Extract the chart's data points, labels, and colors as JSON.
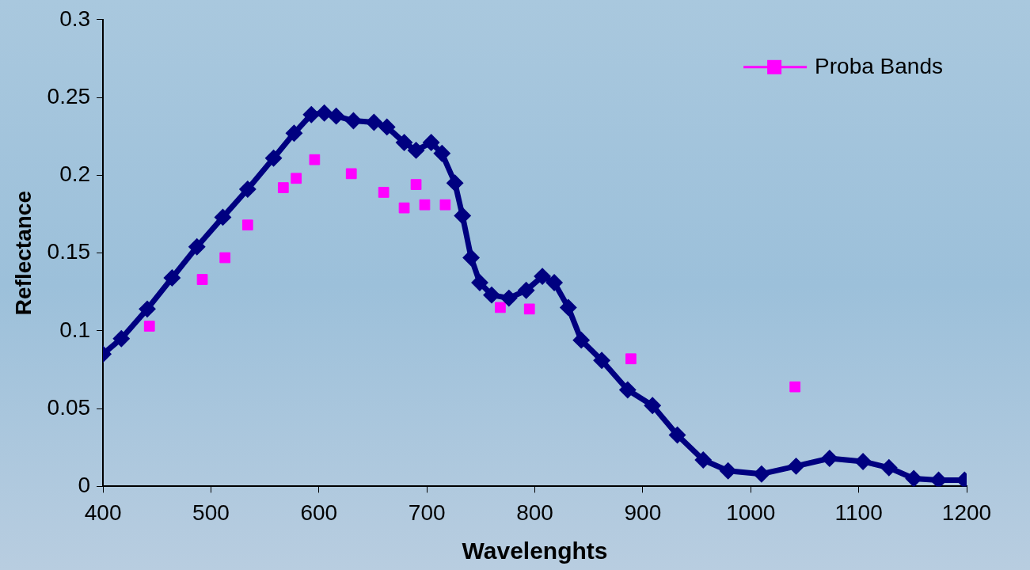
{
  "chart_data": {
    "type": "line",
    "xlabel": "Wavelenghts",
    "ylabel": "Reflectance",
    "xlim": [
      400,
      1200
    ],
    "xticks": [
      400,
      500,
      600,
      700,
      800,
      900,
      1000,
      1100,
      1200
    ],
    "ylim": [
      0,
      0.3
    ],
    "yticks": [
      0,
      0.05,
      0.1,
      0.15,
      0.2,
      0.25,
      0.3
    ],
    "grid": false,
    "legend": "top right",
    "series": [
      {
        "color": "#000080",
        "marker": "diamond",
        "x": [
          400,
          417,
          441,
          464,
          487,
          511,
          534,
          558,
          577,
          593,
          605,
          616,
          632,
          651,
          663,
          679,
          690,
          704,
          714,
          726,
          733,
          741,
          749,
          760,
          776,
          792,
          807,
          818,
          831,
          843,
          862,
          886,
          909,
          932,
          956,
          979,
          1010,
          1042,
          1073,
          1104,
          1128,
          1151,
          1174,
          1198
        ],
        "values": [
          0.085,
          0.095,
          0.114,
          0.134,
          0.154,
          0.173,
          0.191,
          0.211,
          0.227,
          0.239,
          0.24,
          0.238,
          0.235,
          0.234,
          0.231,
          0.221,
          0.216,
          0.221,
          0.214,
          0.195,
          0.174,
          0.147,
          0.131,
          0.123,
          0.121,
          0.126,
          0.135,
          0.131,
          0.115,
          0.094,
          0.081,
          0.062,
          0.052,
          0.033,
          0.017,
          0.01,
          0.008,
          0.013,
          0.018,
          0.016,
          0.012,
          0.005,
          0.004,
          0.004
        ]
      },
      {
        "type": "scatter",
        "name": "Proba Bands",
        "color": "#ff00ff",
        "marker": "square",
        "x": [
          443,
          492,
          513,
          534,
          567,
          579,
          596,
          630,
          660,
          679,
          690,
          698,
          717,
          768,
          795,
          889,
          1041
        ],
        "values": [
          0.103,
          0.133,
          0.147,
          0.168,
          0.192,
          0.198,
          0.21,
          0.201,
          0.189,
          0.179,
          0.194,
          0.181,
          0.181,
          0.115,
          0.114,
          0.082,
          0.064
        ]
      }
    ]
  }
}
